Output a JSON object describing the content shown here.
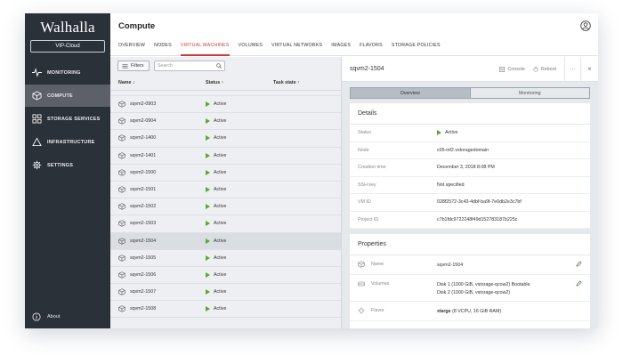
{
  "app": {
    "logo": "Walhalla",
    "cloud": "VIP-Cloud"
  },
  "sidebar": {
    "items": [
      {
        "label": "MONITORING",
        "icon": "pulse-icon"
      },
      {
        "label": "COMPUTE",
        "icon": "cube-icon",
        "active": true
      },
      {
        "label": "STORAGE SERVICES",
        "icon": "grid-icon"
      },
      {
        "label": "INFRASTRUCTURE",
        "icon": "triangle-icon"
      },
      {
        "label": "SETTINGS",
        "icon": "gear-icon"
      }
    ],
    "about": "About"
  },
  "header": {
    "title": "Compute"
  },
  "tabs": [
    {
      "label": "OVERVIEW"
    },
    {
      "label": "NODES"
    },
    {
      "label": "VIRTUAL MACHINES",
      "active": true
    },
    {
      "label": "VOLUMES"
    },
    {
      "label": "VIRTUAL NETWORKS"
    },
    {
      "label": "IMAGES"
    },
    {
      "label": "FLAVORS"
    },
    {
      "label": "STORAGE POLICIES"
    }
  ],
  "list": {
    "filters_label": "Filters",
    "search_placeholder": "Search",
    "columns": {
      "name": "Name ↓",
      "status": "Status ↑",
      "task": "Task state ↑"
    },
    "rows": [
      {
        "name": "sqvm2-0903",
        "status": "Active"
      },
      {
        "name": "sqvm2-0904",
        "status": "Active"
      },
      {
        "name": "sqvm2-1400",
        "status": "Active"
      },
      {
        "name": "sqvm2-1401",
        "status": "Active"
      },
      {
        "name": "sqvm2-1500",
        "status": "Active"
      },
      {
        "name": "sqvm2-1501",
        "status": "Active"
      },
      {
        "name": "sqvm2-1502",
        "status": "Active"
      },
      {
        "name": "sqvm2-1503",
        "status": "Active"
      },
      {
        "name": "sqvm2-1504",
        "status": "Active",
        "selected": true
      },
      {
        "name": "sqvm2-1505",
        "status": "Active"
      },
      {
        "name": "sqvm2-1506",
        "status": "Active"
      },
      {
        "name": "sqvm2-1507",
        "status": "Active"
      },
      {
        "name": "sqvm2-1508",
        "status": "Active"
      }
    ]
  },
  "detail": {
    "title": "sqvm2-1504",
    "console": "Console",
    "reboot": "Reboot",
    "more": "···",
    "close": "×",
    "tab_overview": "Overview",
    "tab_monitoring": "Monitoring",
    "details_title": "Details",
    "details": [
      {
        "key": "Status",
        "value": "Active"
      },
      {
        "key": "Node",
        "value": "c05-inf2.vstoragedomain"
      },
      {
        "key": "Creation time",
        "value": "December 3, 2018 8:08 PM"
      },
      {
        "key": "SSH key",
        "value": "Not specified"
      },
      {
        "key": "VM ID",
        "value": "028f2572-3c43-4dbf-ba9f-7e0db2e3c7bf"
      },
      {
        "key": "Project ID",
        "value": "c7b1fdc9722248f49d152783187b225c"
      }
    ],
    "properties_title": "Properties",
    "properties": {
      "name_key": "Name",
      "name_value": "sqvm2-1504",
      "volumes_key": "Volumes",
      "volumes_line1": "Disk 1 (1000 GiB, vstorage-qcow2) Bootable",
      "volumes_line2": "Disk 2 (1000 GiB, vstorage-qcow2)",
      "flavor_key": "Flavor",
      "flavor_bold": "xlarge",
      "flavor_rest": " (8 VCPU, 16 GiB RAM)"
    }
  },
  "colors": {
    "sidebar": "#2b3139",
    "accent": "#d23a3a",
    "status_green": "#5ca636"
  }
}
